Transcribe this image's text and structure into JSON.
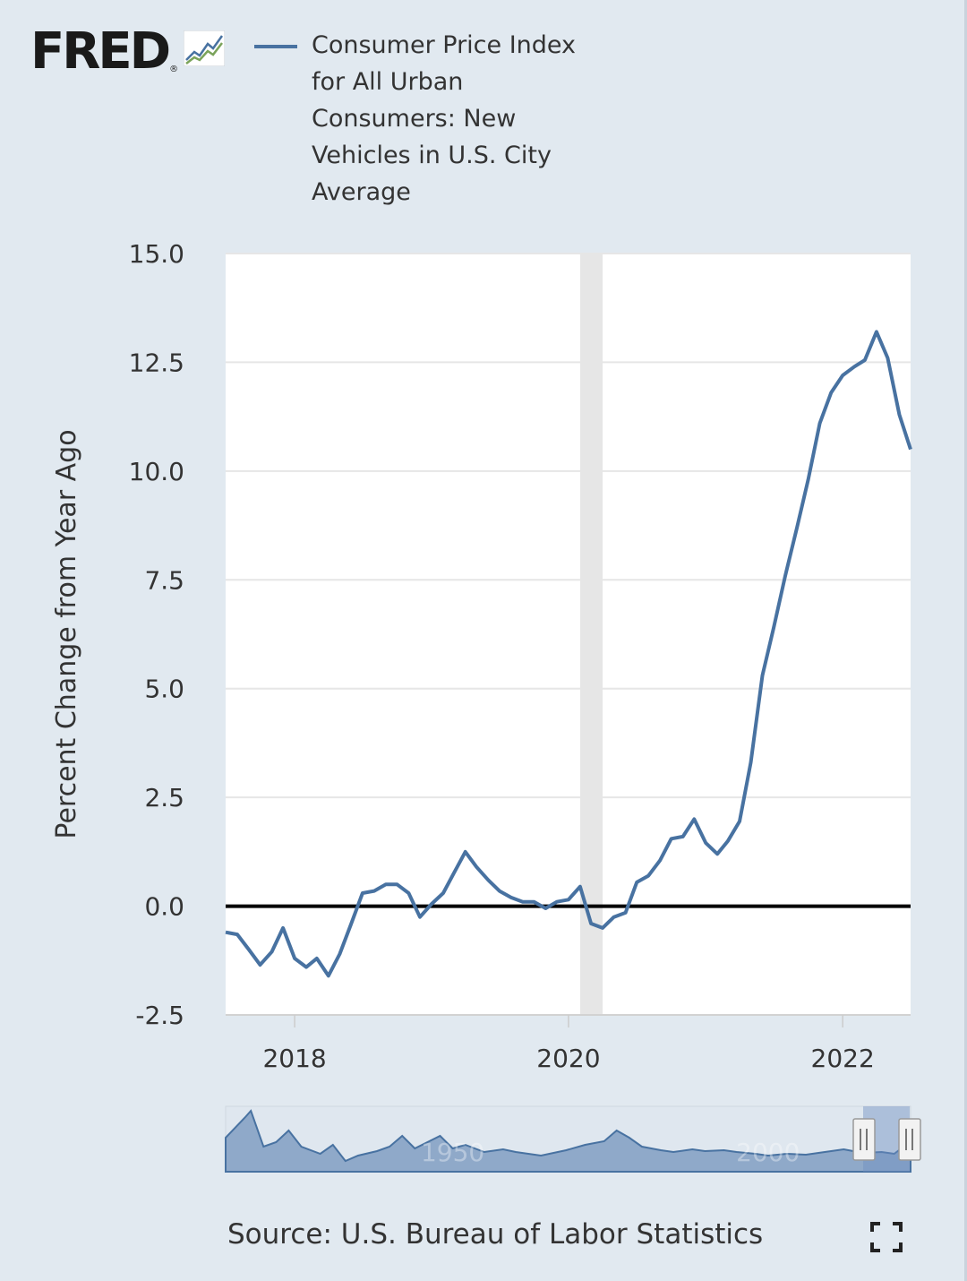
{
  "header": {
    "logo_text": "FRED",
    "logo_registered": "®",
    "logo_icon": "line-chart-icon"
  },
  "legend": {
    "series_name": "Consumer Price Index for All Urban Consumers: New Vehicles in U.S. City Average",
    "color": "#4872a1"
  },
  "source": "Source: U.S. Bureau of Labor Statistics",
  "fullscreen_icon": "expand-icon",
  "colors": {
    "background": "#e1e9f0",
    "plot_background": "#ffffff",
    "gridline": "#e6e6e6",
    "recession": "#e6e6e6",
    "series": "#4872a1",
    "zero_line": "#000000",
    "navigator_fill": "#8fa9c9",
    "navigator_line": "#4872a1"
  },
  "chart_data": {
    "type": "line",
    "title": "",
    "xlabel": "",
    "ylabel": "Percent Change from Year Ago",
    "ylim": [
      -2.5,
      15.0
    ],
    "yticks": [
      "-2.5",
      "0.0",
      "2.5",
      "5.0",
      "7.5",
      "10.0",
      "12.5",
      "15.0"
    ],
    "ytick_values": [
      -2.5,
      0,
      2.5,
      5,
      7.5,
      10,
      12.5,
      15
    ],
    "xlim": [
      "2017-07-01",
      "2022-07-01"
    ],
    "xticks": [
      "2018",
      "2020",
      "2022"
    ],
    "xtick_dates": [
      "2018-01-01",
      "2020-01-01",
      "2022-01-01"
    ],
    "grid": "horizontal",
    "legend_position": "top",
    "recession_band": [
      "2020-02-01",
      "2020-04-01"
    ],
    "reference_line": 0,
    "series": [
      {
        "name": "Consumer Price Index for All Urban Consumers: New Vehicles in U.S. City Average",
        "x": [
          "2017-07-01",
          "2017-08-01",
          "2017-09-01",
          "2017-10-01",
          "2017-11-01",
          "2017-12-01",
          "2018-01-01",
          "2018-02-01",
          "2018-03-01",
          "2018-04-01",
          "2018-05-01",
          "2018-06-01",
          "2018-07-01",
          "2018-08-01",
          "2018-09-01",
          "2018-10-01",
          "2018-11-01",
          "2018-12-01",
          "2019-01-01",
          "2019-02-01",
          "2019-03-01",
          "2019-04-01",
          "2019-05-01",
          "2019-06-01",
          "2019-07-01",
          "2019-08-01",
          "2019-09-01",
          "2019-10-01",
          "2019-11-01",
          "2019-12-01",
          "2020-01-01",
          "2020-02-01",
          "2020-03-01",
          "2020-04-01",
          "2020-05-01",
          "2020-06-01",
          "2020-07-01",
          "2020-08-01",
          "2020-09-01",
          "2020-10-01",
          "2020-11-01",
          "2020-12-01",
          "2021-01-01",
          "2021-02-01",
          "2021-03-01",
          "2021-04-01",
          "2021-05-01",
          "2021-06-01",
          "2021-07-01",
          "2021-08-01",
          "2021-09-01",
          "2021-10-01",
          "2021-11-01",
          "2021-12-01",
          "2022-01-01",
          "2022-02-01",
          "2022-03-01",
          "2022-04-01",
          "2022-05-01",
          "2022-06-01",
          "2022-07-01"
        ],
        "values": [
          -0.6,
          -0.65,
          -1.0,
          -1.35,
          -1.05,
          -0.5,
          -1.2,
          -1.4,
          -1.2,
          -1.6,
          -1.1,
          -0.4,
          0.3,
          0.35,
          0.5,
          0.5,
          0.3,
          -0.25,
          0.05,
          0.3,
          0.75,
          1.25,
          0.9,
          0.6,
          0.35,
          0.2,
          0.1,
          0.1,
          -0.05,
          0.1,
          0.15,
          0.45,
          -0.4,
          -0.5,
          -0.25,
          -0.15,
          0.55,
          0.7,
          1.05,
          1.55,
          1.6,
          2.0,
          1.45,
          1.2,
          1.5,
          1.95,
          3.3,
          5.3,
          6.4,
          7.6,
          8.7,
          9.8,
          11.1,
          11.8,
          12.2,
          12.4,
          12.55,
          13.2,
          12.6,
          11.3,
          10.5
        ]
      }
    ],
    "navigator": {
      "labels": [
        "1950",
        "2000"
      ],
      "label_years": [
        1950,
        2000
      ],
      "range": [
        1914,
        2022.6
      ],
      "selected": [
        "2017-07-01",
        "2022-07-01"
      ]
    }
  }
}
